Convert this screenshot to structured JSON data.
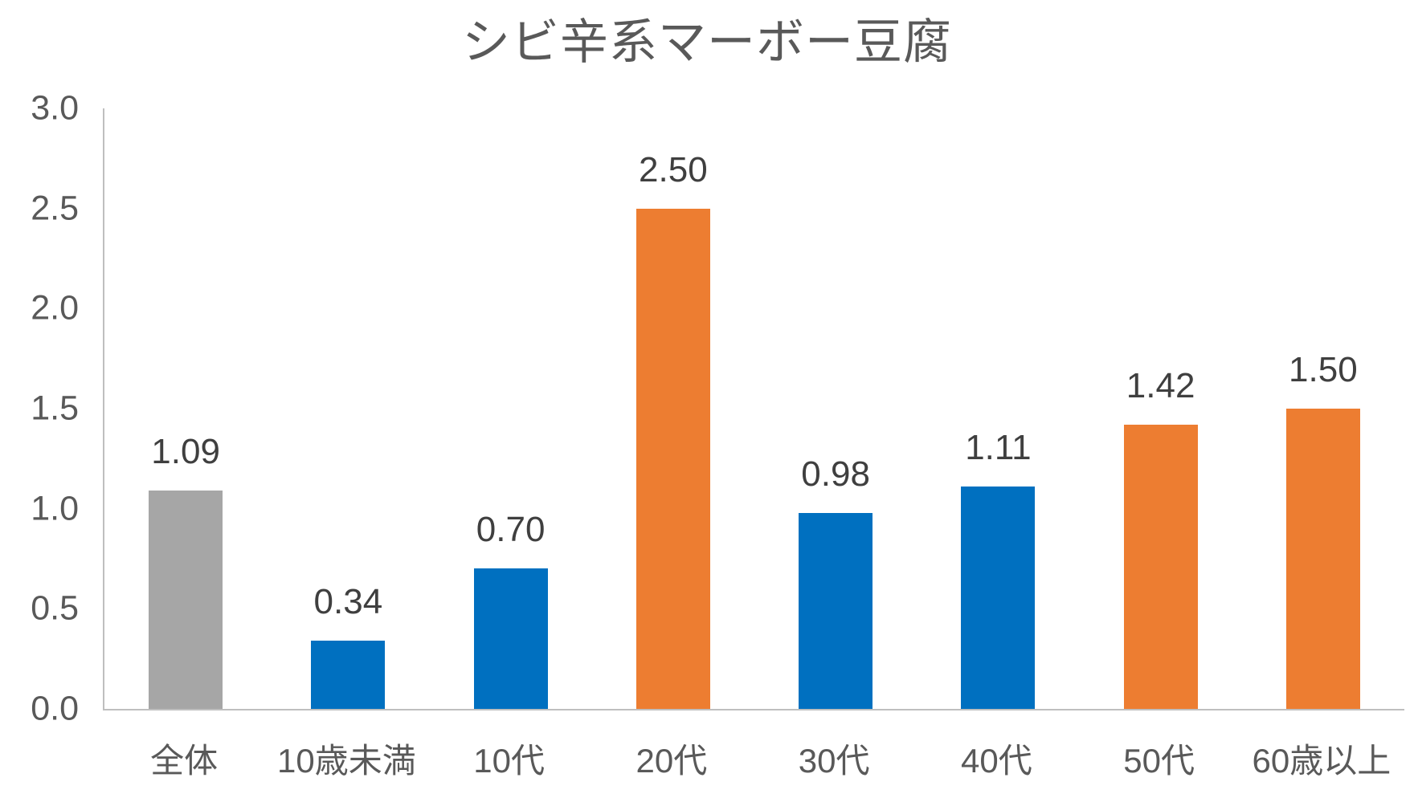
{
  "chart_data": {
    "type": "bar",
    "title": "シビ辛系マーボー豆腐",
    "categories": [
      "全体",
      "10歳未満",
      "10代",
      "20代",
      "30代",
      "40代",
      "50代",
      "60歳以上"
    ],
    "values": [
      1.09,
      0.34,
      0.7,
      2.5,
      0.98,
      1.11,
      1.42,
      1.5
    ],
    "data_labels": [
      "1.09",
      "0.34",
      "0.70",
      "2.50",
      "0.98",
      "1.11",
      "1.42",
      "1.50"
    ],
    "bar_colors": [
      "#A6A6A6",
      "#0070C0",
      "#0070C0",
      "#ED7D31",
      "#0070C0",
      "#0070C0",
      "#ED7D31",
      "#ED7D31"
    ],
    "y_ticks": [
      "3.0",
      "2.5",
      "2.0",
      "1.5",
      "1.0",
      "0.5",
      "0.0"
    ],
    "ylim": [
      0,
      3.0
    ],
    "xlabel": "",
    "ylabel": "",
    "grid": false,
    "legend": "none",
    "colors": {
      "bar_default_blue": "#0070C0",
      "bar_highlight_orange": "#ED7D31",
      "bar_total_gray": "#A6A6A6",
      "axis_line": "#BFBFBF",
      "tick_label": "#595959",
      "data_label": "#3F3F3F",
      "title": "#595959"
    }
  }
}
